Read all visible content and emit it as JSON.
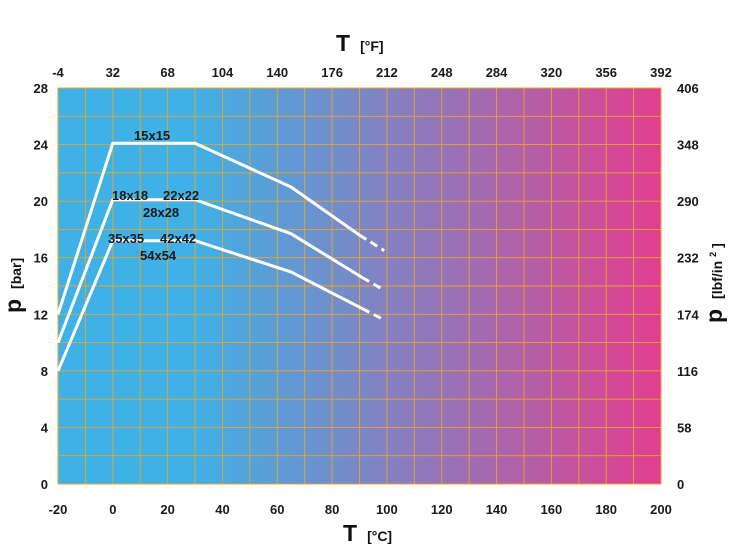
{
  "chart_data": {
    "type": "line",
    "x_bottom": {
      "symbol": "T",
      "unit": "[°C]",
      "ticks": [
        "-20",
        "0",
        "20",
        "40",
        "60",
        "80",
        "100",
        "120",
        "140",
        "160",
        "180",
        "200"
      ],
      "range": [
        -20,
        200
      ]
    },
    "x_top": {
      "symbol": "T",
      "unit": "[°F]",
      "ticks": [
        "-4",
        "32",
        "68",
        "104",
        "140",
        "176",
        "212",
        "248",
        "284",
        "320",
        "356",
        "392"
      ]
    },
    "y_left": {
      "symbol": "p",
      "unit": "[bar]",
      "ticks": [
        "0",
        "4",
        "8",
        "12",
        "16",
        "20",
        "24",
        "28"
      ],
      "range": [
        0,
        28
      ]
    },
    "y_right": {
      "symbol": "p",
      "unit": "[lbf/in",
      "unit_sup": "2",
      "unit_close": "]",
      "ticks": [
        "0",
        "58",
        "116",
        "174",
        "232",
        "290",
        "348",
        "406"
      ]
    },
    "grid": true,
    "background_gradient": [
      "#3fb1e6",
      "#3fb1e6",
      "#e23e8f"
    ],
    "line_color": "#ffffff",
    "series": [
      {
        "labels": [
          "15x15"
        ],
        "points": [
          [
            -20,
            12
          ],
          [
            0,
            24.1
          ],
          [
            30,
            24.1
          ],
          [
            65,
            21
          ],
          [
            90,
            17.6
          ]
        ],
        "dashed": [
          [
            90,
            17.6
          ],
          [
            99,
            16.5
          ]
        ]
      },
      {
        "labels": [
          "18x18",
          "22x22",
          "28x28"
        ],
        "points": [
          [
            -20,
            10
          ],
          [
            0,
            20.1
          ],
          [
            30,
            20.1
          ],
          [
            65,
            17.7
          ],
          [
            91,
            14.6
          ]
        ],
        "dashed": [
          [
            91,
            14.6
          ],
          [
            99,
            13.7
          ]
        ]
      },
      {
        "labels": [
          "35x35",
          "42x42",
          "54x54"
        ],
        "points": [
          [
            -20,
            8
          ],
          [
            0,
            17.2
          ],
          [
            30,
            17.2
          ],
          [
            65,
            15
          ],
          [
            91,
            12.4
          ]
        ],
        "dashed": [
          [
            91,
            12.4
          ],
          [
            99,
            11.6
          ]
        ]
      }
    ]
  }
}
